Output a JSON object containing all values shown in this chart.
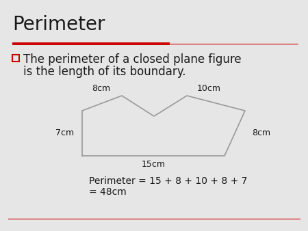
{
  "title": "Perimeter",
  "title_fontsize": 20,
  "bullet_text_line1": "The perimeter of a closed plane figure",
  "bullet_text_line2": "is the length of its boundary.",
  "bullet_fontsize": 12,
  "formula_line1": "Perimeter = 15 + 8 + 10 + 8 + 7",
  "formula_line2": "= 48cm",
  "formula_fontsize": 10,
  "bg_color": "#e6e6e6",
  "title_color": "#1a1a1a",
  "text_color": "#1a1a1a",
  "shape_color": "#999999",
  "red_line_color": "#cc0000",
  "bullet_square_color": "#cc0000",
  "label_fontsize": 9
}
